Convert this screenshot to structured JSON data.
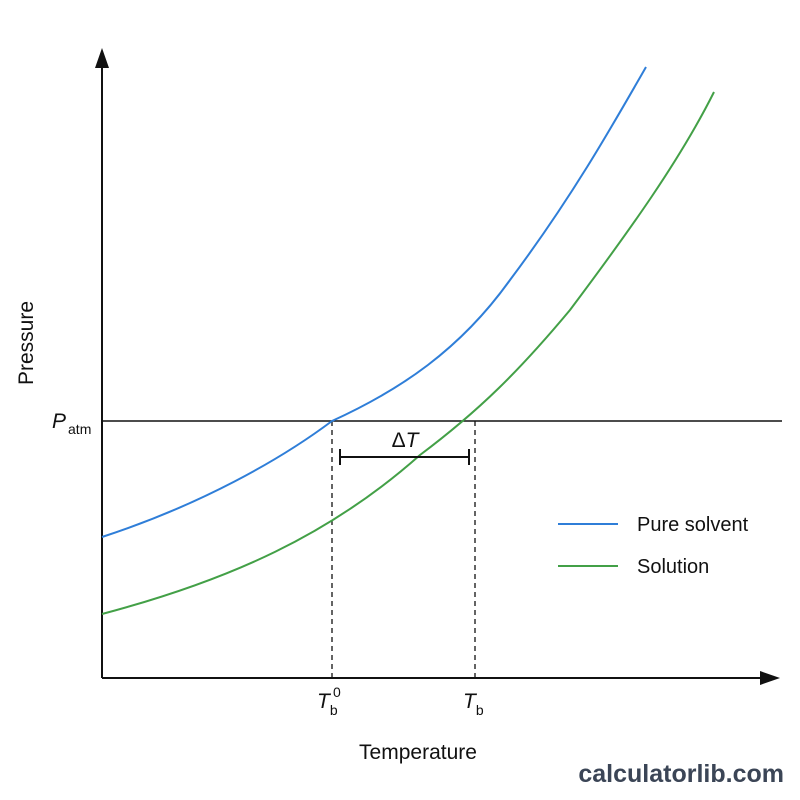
{
  "chart_data": {
    "type": "line",
    "title": "",
    "xlabel": "Temperature",
    "ylabel": "Pressure",
    "x_ticks": [
      {
        "name": "T0b",
        "main": "T",
        "sub": "b",
        "sup": "0"
      },
      {
        "name": "Tb",
        "main": "T",
        "sub": "b",
        "sup": ""
      }
    ],
    "y_ticks": [
      {
        "name": "Patm",
        "main": "P",
        "sub": "atm"
      }
    ],
    "annotation": {
      "delta": "Δ",
      "var": "T"
    },
    "series": [
      {
        "name": "Pure solvent",
        "color": "#2f7ed8"
      },
      {
        "name": "Solution",
        "color": "#43a047"
      }
    ],
    "legend_position": "right",
    "grid": false
  },
  "watermark": "calculatorlib.com"
}
